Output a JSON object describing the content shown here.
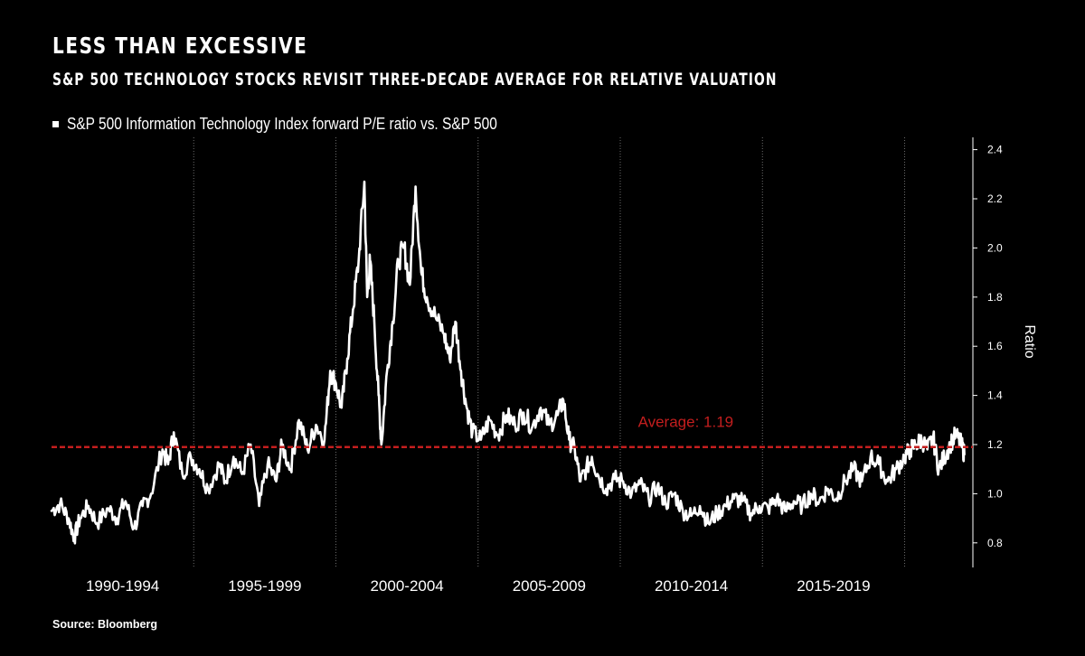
{
  "header": {
    "title": "LESS THAN EXCESSIVE",
    "subtitle": "S&P 500 TECHNOLOGY STOCKS REVISIT THREE-DECADE AVERAGE FOR RELATIVE VALUATION"
  },
  "footer": {
    "source": "Source: Bloomberg"
  },
  "colors": {
    "background": "#000000",
    "line": "#ffffff",
    "average": "#c41e1e",
    "grid": "#6b6b6b"
  },
  "chart_data": {
    "type": "line",
    "title": "LESS THAN EXCESSIVE",
    "subtitle": "S&P 500 TECHNOLOGY STOCKS REVISIT THREE-DECADE AVERAGE FOR RELATIVE VALUATION",
    "legend": "S&P 500 Information Technology Index forward P/E ratio vs. S&P 500",
    "legend_position": "top-left",
    "ylabel": "Ratio",
    "xlabel": "",
    "ylim": [
      0.7,
      2.45
    ],
    "xlim": [
      1990,
      2022.4
    ],
    "grid": true,
    "yticks": [
      0.8,
      1.0,
      1.2,
      1.4,
      1.6,
      1.8,
      2.0,
      2.2,
      2.4
    ],
    "ytick_labels": [
      "0.8",
      "1.0",
      "1.2",
      "1.4",
      "1.6",
      "1.8",
      "2.0",
      "2.2",
      "2.4"
    ],
    "x_gridlines": [
      1995,
      2000,
      2005,
      2010,
      2015,
      2020
    ],
    "x_periods": [
      {
        "label": "1990-1994",
        "center": 1992.5
      },
      {
        "label": "1995-1999",
        "center": 1997.5
      },
      {
        "label": "2000-2004",
        "center": 2002.5
      },
      {
        "label": "2005-2009",
        "center": 2007.5
      },
      {
        "label": "2010-2014",
        "center": 2012.5
      },
      {
        "label": "2015-2019",
        "center": 2017.5
      }
    ],
    "average": {
      "value": 1.19,
      "label": "Average: 1.19"
    },
    "series": [
      {
        "name": "S&P 500 Information Technology Index forward P/E ratio vs. S&P 500",
        "x": [
          1990.0,
          1990.3,
          1990.6,
          1990.8,
          1991.0,
          1991.3,
          1991.6,
          1992.0,
          1992.3,
          1992.6,
          1992.9,
          1993.2,
          1993.5,
          1993.9,
          1994.1,
          1994.3,
          1994.6,
          1994.9,
          1995.2,
          1995.5,
          1995.9,
          1996.1,
          1996.4,
          1996.7,
          1997.0,
          1997.3,
          1997.6,
          1997.9,
          1998.1,
          1998.4,
          1998.7,
          1999.0,
          1999.3,
          1999.6,
          1999.8,
          2000.0,
          2000.2,
          2000.4,
          2000.6,
          2000.8,
          2001.0,
          2001.1,
          2001.2,
          2001.35,
          2001.5,
          2001.6,
          2001.8,
          2002.0,
          2002.2,
          2002.4,
          2002.6,
          2002.8,
          2003.0,
          2003.2,
          2003.5,
          2003.8,
          2004.0,
          2004.2,
          2004.4,
          2004.6,
          2004.8,
          2005.1,
          2005.4,
          2005.7,
          2006.0,
          2006.3,
          2006.6,
          2006.9,
          2007.2,
          2007.5,
          2007.8,
          2008.0,
          2008.2,
          2008.4,
          2008.6,
          2008.8,
          2009.0,
          2009.2,
          2009.5,
          2009.8,
          2010.1,
          2010.4,
          2010.7,
          2011.0,
          2011.3,
          2011.6,
          2011.9,
          2012.2,
          2012.5,
          2012.8,
          2013.1,
          2013.4,
          2013.7,
          2014.0,
          2014.3,
          2014.6,
          2014.9,
          2015.2,
          2015.5,
          2015.8,
          2016.1,
          2016.4,
          2016.7,
          2017.0,
          2017.3,
          2017.6,
          2017.9,
          2018.2,
          2018.5,
          2018.8,
          2019.1,
          2019.4,
          2019.7,
          2020.0,
          2020.2,
          2020.4,
          2020.6,
          2020.8,
          2021.0,
          2021.2,
          2021.4,
          2021.6,
          2021.8,
          2022.0,
          2022.1
        ],
        "values": [
          0.93,
          0.96,
          0.9,
          0.82,
          0.9,
          0.95,
          0.88,
          0.94,
          0.9,
          0.97,
          0.86,
          0.95,
          1.0,
          1.18,
          1.12,
          1.25,
          1.08,
          1.15,
          1.1,
          1.02,
          1.12,
          1.05,
          1.15,
          1.08,
          1.2,
          0.95,
          1.12,
          1.05,
          1.2,
          1.1,
          1.3,
          1.18,
          1.28,
          1.22,
          1.5,
          1.45,
          1.35,
          1.55,
          1.75,
          1.95,
          2.27,
          1.8,
          1.95,
          1.7,
          1.4,
          1.2,
          1.5,
          1.7,
          1.95,
          2.0,
          1.85,
          2.25,
          1.9,
          1.8,
          1.72,
          1.65,
          1.55,
          1.7,
          1.5,
          1.35,
          1.25,
          1.22,
          1.3,
          1.24,
          1.32,
          1.28,
          1.33,
          1.27,
          1.35,
          1.28,
          1.32,
          1.38,
          1.22,
          1.18,
          1.05,
          1.1,
          1.15,
          1.08,
          1.02,
          1.06,
          1.05,
          1.0,
          1.04,
          0.98,
          1.03,
          0.96,
          1.0,
          0.93,
          0.91,
          0.95,
          0.88,
          0.92,
          0.95,
          0.98,
          0.97,
          0.92,
          0.95,
          0.94,
          0.98,
          0.93,
          0.97,
          0.95,
          1.0,
          0.97,
          1.02,
          0.98,
          1.05,
          1.1,
          1.05,
          1.15,
          1.12,
          1.05,
          1.1,
          1.15,
          1.18,
          1.2,
          1.22,
          1.18,
          1.23,
          1.1,
          1.15,
          1.2,
          1.24,
          1.2,
          1.16
        ]
      }
    ]
  }
}
